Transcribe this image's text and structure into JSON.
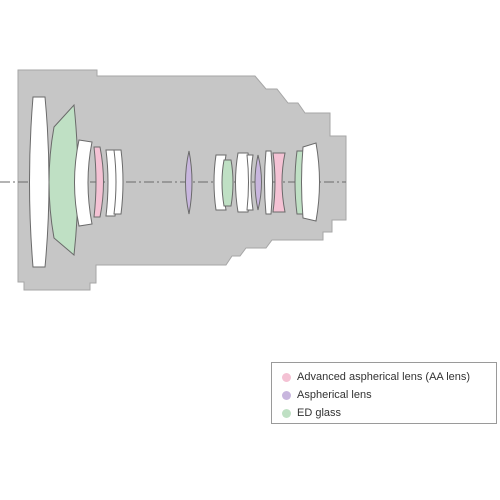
{
  "colors": {
    "housing": "#c6c6c6",
    "housing_stroke": "#a6a6a6",
    "lens_plain": "#ffffff",
    "lens_stroke": "#6a6a6a",
    "aa_lens": "#f4c2d4",
    "aspherical": "#c8b6de",
    "ed_glass": "#bfe0c4",
    "axis": "#6a6a6a"
  },
  "legend": {
    "items": [
      {
        "key": "aa",
        "label": "Advanced aspherical lens (AA lens)",
        "color": "#f4c2d4"
      },
      {
        "key": "asph",
        "label": "Aspherical lens",
        "color": "#c8b6de"
      },
      {
        "key": "ed",
        "label": "ED glass",
        "color": "#bfe0c4"
      }
    ]
  }
}
